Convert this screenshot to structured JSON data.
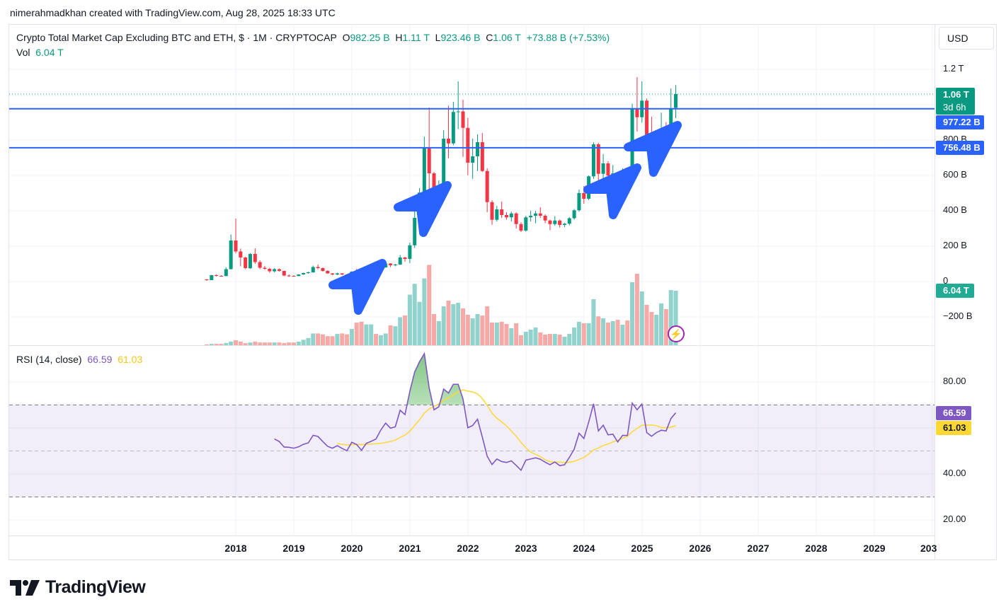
{
  "header": {
    "attribution": "nimerahmadkhan created with TradingView.com, Aug 28, 2025 18:33 UTC"
  },
  "legend": {
    "title": "Crypto Total Market Cap Excluding BTC and ETH, $ · 1M · CRYPTOCAP",
    "o_label": "O",
    "o_value": "982.25 B",
    "h_label": "H",
    "h_value": "1.11 T",
    "l_label": "L",
    "l_value": "923.46 B",
    "c_label": "C",
    "c_value": "1.06 T",
    "change": "+73.88 B (+7.53%)",
    "vol_label": "Vol",
    "vol_value": "6.04 T"
  },
  "rsi_legend": {
    "label": "RSI (14, close)",
    "rsi_value": "66.59",
    "ma_value": "61.03"
  },
  "currency_button": "USD",
  "price_axis": {
    "ticks": [
      "1.2 T",
      "800 B",
      "600 B",
      "400 B",
      "200 B",
      "0",
      "−200 B"
    ],
    "tick_values_b": [
      1200,
      800,
      600,
      400,
      200,
      0,
      -200
    ]
  },
  "rsi_axis": {
    "ticks": [
      "80.00",
      "40.00",
      "20.00"
    ],
    "tick_values": [
      80,
      40,
      20
    ]
  },
  "time_axis": {
    "ticks": [
      "2018",
      "2019",
      "2020",
      "2021",
      "2022",
      "2023",
      "2024",
      "2025",
      "2026",
      "2027",
      "2028",
      "2029",
      "203"
    ]
  },
  "labels": {
    "price_last": "1.06 T",
    "countdown": "3d 6h",
    "line1": "977.22 B",
    "line2": "756.48 B",
    "volume_last": "6.04 T",
    "rsi_last": "66.59",
    "rsi_ma_last": "61.03"
  },
  "colors": {
    "up": "#089981",
    "down": "#f23645",
    "vol_up": "#92d2cc",
    "vol_down": "#f7a9a7",
    "line": "#2962ff",
    "rsi": "#7e57c2",
    "rsi_ma": "#fdd835",
    "drawing": "#2962ff"
  },
  "brand": "TradingView",
  "chart_data": {
    "type": "candlestick",
    "interval": "1M",
    "x_start": "2017-07",
    "unit": "B USD",
    "horizontal_lines_b": [
      977.22,
      756.48
    ],
    "last_price_b": 1060,
    "candles_ohlc": [
      [
        12,
        14,
        4,
        8
      ],
      [
        8,
        38,
        8,
        36
      ],
      [
        36,
        40,
        28,
        32
      ],
      [
        32,
        36,
        28,
        31
      ],
      [
        31,
        80,
        30,
        70
      ],
      [
        70,
        266,
        68,
        232
      ],
      [
        232,
        356,
        160,
        170
      ],
      [
        170,
        186,
        86,
        136
      ],
      [
        136,
        140,
        70,
        76
      ],
      [
        75,
        160,
        72,
        156
      ],
      [
        156,
        188,
        100,
        110
      ],
      [
        110,
        120,
        70,
        78
      ],
      [
        78,
        88,
        66,
        72
      ],
      [
        72,
        78,
        50,
        58
      ],
      [
        58,
        76,
        52,
        70
      ],
      [
        70,
        74,
        56,
        60
      ],
      [
        60,
        62,
        30,
        34
      ],
      [
        34,
        40,
        26,
        32
      ],
      [
        32,
        36,
        28,
        31
      ],
      [
        31,
        42,
        30,
        40
      ],
      [
        40,
        50,
        38,
        48
      ],
      [
        48,
        56,
        44,
        52
      ],
      [
        52,
        90,
        50,
        82
      ],
      [
        82,
        96,
        70,
        76
      ],
      [
        76,
        80,
        56,
        60
      ],
      [
        60,
        64,
        44,
        46
      ],
      [
        46,
        48,
        36,
        40
      ],
      [
        40,
        50,
        36,
        46
      ],
      [
        46,
        48,
        36,
        40
      ],
      [
        40,
        42,
        32,
        34
      ],
      [
        34,
        58,
        32,
        56
      ],
      [
        56,
        72,
        48,
        50
      ],
      [
        50,
        52,
        20,
        34
      ],
      [
        34,
        54,
        30,
        52
      ],
      [
        52,
        62,
        48,
        58
      ],
      [
        58,
        62,
        52,
        56
      ],
      [
        56,
        84,
        54,
        80
      ],
      [
        80,
        110,
        78,
        102
      ],
      [
        102,
        104,
        82,
        92
      ],
      [
        92,
        100,
        86,
        96
      ],
      [
        96,
        150,
        94,
        136
      ],
      [
        136,
        140,
        112,
        128
      ],
      [
        128,
        220,
        104,
        205
      ],
      [
        205,
        420,
        190,
        360
      ],
      [
        360,
        528,
        350,
        503
      ],
      [
        503,
        819,
        480,
        755
      ],
      [
        755,
        984,
        412,
        612
      ],
      [
        612,
        620,
        390,
        509
      ],
      [
        509,
        572,
        412,
        543
      ],
      [
        543,
        856,
        530,
        808
      ],
      [
        808,
        994,
        698,
        781
      ],
      [
        781,
        1016,
        770,
        959
      ],
      [
        959,
        1132,
        862,
        962
      ],
      [
        962,
        1028,
        705,
        869
      ],
      [
        869,
        925,
        601,
        672
      ],
      [
        672,
        809,
        581,
        708
      ],
      [
        708,
        832,
        625,
        788
      ],
      [
        788,
        840,
        620,
        625
      ],
      [
        625,
        640,
        392,
        449
      ],
      [
        449,
        460,
        321,
        349
      ],
      [
        349,
        428,
        340,
        408
      ],
      [
        408,
        452,
        360,
        376
      ],
      [
        376,
        392,
        350,
        363
      ],
      [
        363,
        395,
        340,
        385
      ],
      [
        385,
        392,
        300,
        325
      ],
      [
        325,
        335,
        280,
        288
      ],
      [
        288,
        372,
        282,
        363
      ],
      [
        363,
        400,
        340,
        372
      ],
      [
        372,
        400,
        330,
        385
      ],
      [
        385,
        420,
        360,
        372
      ],
      [
        372,
        380,
        330,
        345
      ],
      [
        345,
        350,
        290,
        325
      ],
      [
        325,
        370,
        315,
        345
      ],
      [
        345,
        350,
        305,
        320
      ],
      [
        320,
        332,
        308,
        327
      ],
      [
        327,
        365,
        318,
        358
      ],
      [
        358,
        410,
        350,
        403
      ],
      [
        403,
        520,
        395,
        500
      ],
      [
        500,
        540,
        440,
        468
      ],
      [
        468,
        600,
        460,
        595
      ],
      [
        595,
        788,
        580,
        776
      ],
      [
        776,
        784,
        559,
        609
      ],
      [
        609,
        721,
        560,
        668
      ],
      [
        668,
        680,
        560,
        599
      ],
      [
        599,
        659,
        509,
        612
      ],
      [
        612,
        620,
        465,
        559
      ],
      [
        559,
        640,
        540,
        616
      ],
      [
        616,
        640,
        540,
        606
      ],
      [
        606,
        1005,
        595,
        979
      ],
      [
        979,
        1156,
        848,
        929
      ],
      [
        929,
        1132,
        899,
        1023
      ],
      [
        1023,
        1035,
        745,
        803
      ],
      [
        803,
        932,
        716,
        765
      ],
      [
        765,
        843,
        663,
        809
      ],
      [
        809,
        955,
        779,
        843
      ],
      [
        843,
        901,
        755,
        835
      ],
      [
        835,
        1092,
        812,
        979
      ],
      [
        982.25,
        1110,
        923.46,
        1060
      ]
    ],
    "volume_t": [
      0.08,
      0.15,
      0.15,
      0.15,
      0.25,
      0.4,
      0.55,
      0.4,
      0.23,
      0.3,
      0.4,
      0.3,
      0.3,
      0.3,
      0.3,
      0.3,
      0.23,
      0.3,
      0.3,
      0.4,
      0.6,
      0.8,
      1.3,
      1.3,
      1.2,
      1.0,
      1.0,
      1.25,
      1.3,
      1.2,
      1.8,
      2.5,
      2.6,
      2.3,
      2.3,
      1.25,
      1.1,
      1.3,
      2.2,
      2.1,
      3.1,
      3.3,
      5.6,
      6.8,
      4.8,
      7.4,
      8.9,
      3.45,
      2.67,
      4.3,
      4.94,
      4.55,
      4.7,
      4.08,
      3.37,
      2.98,
      3.45,
      3.29,
      4.31,
      2.51,
      2.51,
      2.59,
      2.35,
      1.88,
      2.43,
      1.1,
      1.49,
      1.72,
      1.96,
      1.41,
      1.18,
      1.25,
      1.25,
      1.18,
      0.94,
      1.25,
      1.96,
      2.59,
      2.43,
      2.43,
      5.1,
      3.2,
      2.98,
      2.51,
      2.67,
      2.82,
      2.27,
      2.74,
      6.98,
      7.92,
      5.96,
      4.47,
      3.68,
      3.37,
      4.63,
      4.0,
      6.11,
      6.04
    ],
    "rsi_start": "2018-09",
    "rsi_period": 14,
    "rsi_ma_period": 14,
    "rsi": [
      55.2,
      54.1,
      51.7,
      51.6,
      51.2,
      51.8,
      52.9,
      53.5,
      56.8,
      56.3,
      54.1,
      52.0,
      51.2,
      52.3,
      51.1,
      50.1,
      53.8,
      52.8,
      50.3,
      53.3,
      54.2,
      55.2,
      59.1,
      62.1,
      59.9,
      60.5,
      67.7,
      65.8,
      75.9,
      84.3,
      88.8,
      92.3,
      77.4,
      67.9,
      69.2,
      76.9,
      75.2,
      79.0,
      79.0,
      72.6,
      60.1,
      61.1,
      63.8,
      56.0,
      47.7,
      44.1,
      46.5,
      45.4,
      45.0,
      45.7,
      43.7,
      41.6,
      46.0,
      46.5,
      47.0,
      46.4,
      45.1,
      44.0,
      45.2,
      43.6,
      44.0,
      47.2,
      50.8,
      57.7,
      55.4,
      62.6,
      70.5,
      58.7,
      61.2,
      57.0,
      57.3,
      53.9,
      56.8,
      56.7,
      70.8,
      67.9,
      70.4,
      58.0,
      56.4,
      58.0,
      59.0,
      58.7,
      64.1,
      66.6
    ],
    "rsi_levels": [
      70,
      50,
      30
    ]
  }
}
